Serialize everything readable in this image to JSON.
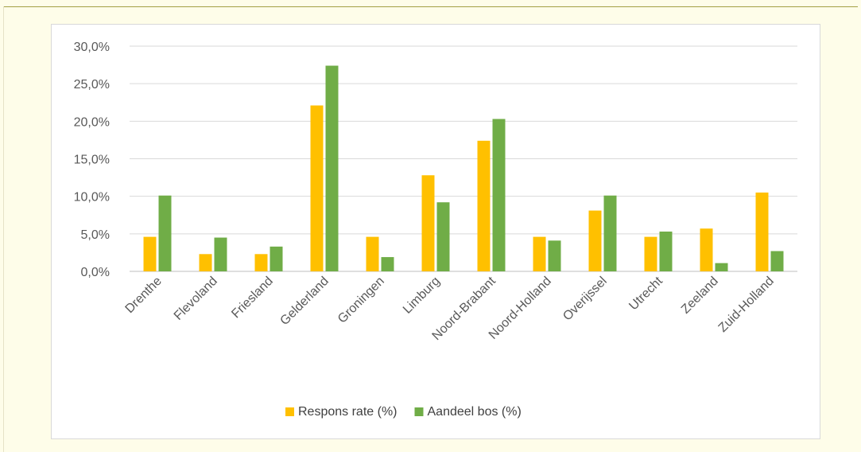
{
  "chart_data": {
    "type": "bar",
    "categories": [
      "Drenthe",
      "Flevoland",
      "Friesland",
      "Gelderland",
      "Groningen",
      "Limburg",
      "Noord-Brabant",
      "Noord-Holland",
      "Overijssel",
      "Utrecht",
      "Zeeland",
      "Zuid-Holland"
    ],
    "series": [
      {
        "name": "Respons rate (%)",
        "color": "#ffc000",
        "values": [
          4.6,
          2.3,
          2.3,
          22.1,
          4.6,
          12.8,
          17.4,
          4.6,
          8.1,
          4.6,
          5.7,
          10.5
        ]
      },
      {
        "name": "Aandeel bos (%)",
        "color": "#70ad47",
        "values": [
          10.1,
          4.5,
          3.3,
          27.4,
          1.9,
          9.2,
          20.3,
          4.1,
          10.1,
          5.3,
          1.1,
          2.7
        ]
      }
    ],
    "ylim": [
      0,
      30
    ],
    "yticks": [
      "0,0%",
      "5,0%",
      "10,0%",
      "15,0%",
      "20,0%",
      "25,0%",
      "30,0%"
    ],
    "grid": true,
    "legend_position": "bottom"
  }
}
